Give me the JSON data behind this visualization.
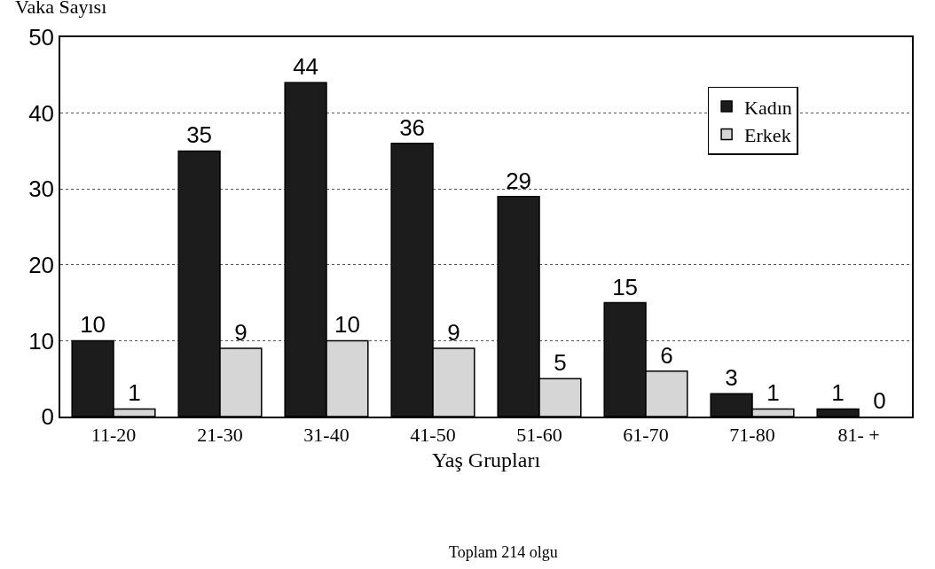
{
  "chart_data": {
    "type": "bar",
    "ylabel": "Vaka Sayısı",
    "xlabel": "Yaş Grupları",
    "categories": [
      "11-20",
      "21-30",
      "31-40",
      "41-50",
      "51-60",
      "61-70",
      "71-80",
      "81- +"
    ],
    "series": [
      {
        "name": "Kadın",
        "color": "#1c1c1c",
        "values": [
          10,
          35,
          44,
          36,
          29,
          15,
          3,
          1
        ]
      },
      {
        "name": "Erkek",
        "color": "#d6d6d6",
        "values": [
          1,
          9,
          10,
          9,
          5,
          6,
          1,
          0
        ]
      }
    ],
    "ylim": [
      0,
      50
    ],
    "yticks": [
      0,
      10,
      20,
      30,
      40,
      50
    ],
    "grid": "y",
    "legend": "top right",
    "data_labels": true,
    "annotations": [
      "Toplam 214 olgu"
    ]
  }
}
